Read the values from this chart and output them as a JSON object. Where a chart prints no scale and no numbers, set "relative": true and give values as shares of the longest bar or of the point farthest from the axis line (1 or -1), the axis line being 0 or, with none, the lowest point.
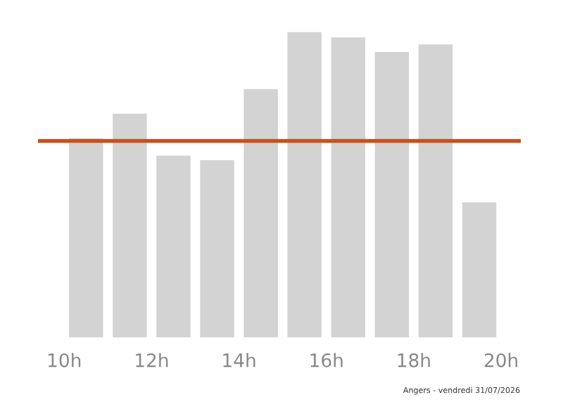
{
  "chart_data": {
    "type": "bar",
    "relative": true,
    "x": [
      10.5,
      11.5,
      12.5,
      13.5,
      14.5,
      15.5,
      16.5,
      17.5,
      18.5,
      19.5
    ],
    "values": [
      0.652,
      0.732,
      0.595,
      0.58,
      0.813,
      1,
      0.982,
      0.934,
      0.959,
      0.442
    ],
    "color": "#d3d3d3",
    "xlim": [
      9.4,
      20.45
    ],
    "xticks": [
      {
        "value": 10,
        "label": "10h"
      },
      {
        "value": 12,
        "label": "12h"
      },
      {
        "value": 14,
        "label": "14h"
      },
      {
        "value": 16,
        "label": "16h"
      },
      {
        "value": 18,
        "label": "18h"
      },
      {
        "value": 20,
        "label": "20h"
      }
    ],
    "ref_lines": [
      {
        "axis": "y",
        "value": 0.643,
        "color": "#c8501e"
      }
    ],
    "annotations": [
      "Angers - vendredi 31/07/2026"
    ],
    "grid": false,
    "legend": false
  }
}
